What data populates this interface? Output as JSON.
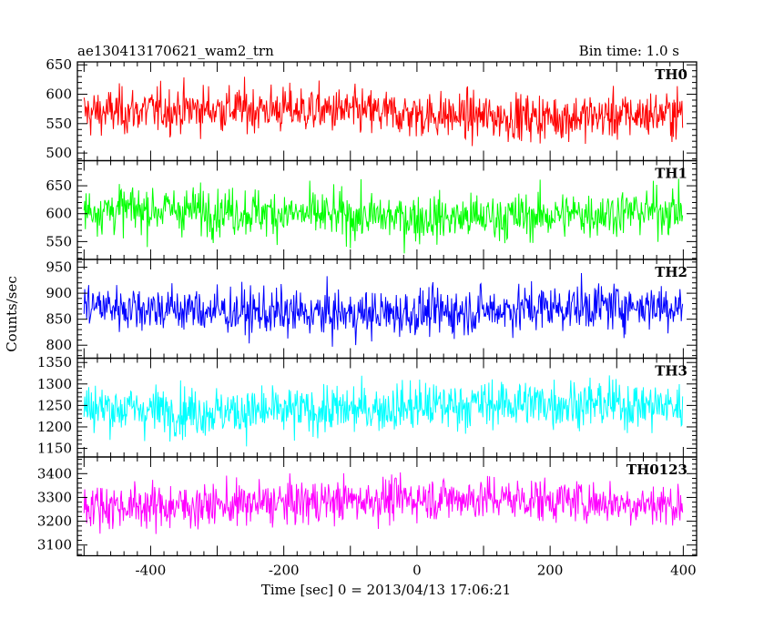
{
  "header": {
    "title": "ae130413170621_wam2_trn",
    "bin_time": "Bin time: 1.0 s"
  },
  "chart_data": {
    "type": "line",
    "xlabel": "Time [sec] 0 = 2013/04/13 17:06:21",
    "ylabel": "Counts/sec",
    "xlim": [
      -510,
      420
    ],
    "xticks": [
      -400,
      -200,
      0,
      200,
      400
    ],
    "x_range": [
      -500,
      399
    ],
    "bin_time_s": 1.0,
    "panels": [
      {
        "name": "TH0",
        "color": "#ff0000",
        "ylim": [
          487,
          655
        ],
        "yticks": [
          500,
          550,
          600,
          650
        ],
        "mean": 568,
        "spread": 28
      },
      {
        "name": "TH1",
        "color": "#00ff00",
        "ylim": [
          518,
          695
        ],
        "yticks": [
          550,
          600,
          650
        ],
        "mean": 600,
        "spread": 30
      },
      {
        "name": "TH2",
        "color": "#0000ff",
        "ylim": [
          775,
          965
        ],
        "yticks": [
          800,
          850,
          900,
          950
        ],
        "mean": 868,
        "spread": 32
      },
      {
        "name": "TH3",
        "color": "#00ffff",
        "ylim": [
          1130,
          1360
        ],
        "yticks": [
          1150,
          1200,
          1250,
          1300,
          1350
        ],
        "mean": 1245,
        "spread": 40
      },
      {
        "name": "TH0123",
        "color": "#ff00ff",
        "ylim": [
          3055,
          3470
        ],
        "yticks": [
          3100,
          3200,
          3300,
          3400
        ],
        "mean": 3280,
        "spread": 65
      }
    ]
  }
}
